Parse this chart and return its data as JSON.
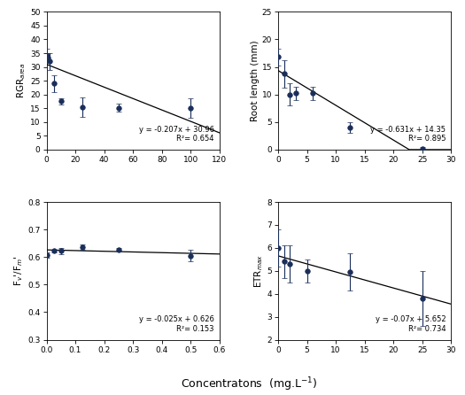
{
  "panel_tl": {
    "ylabel": "RGR$_{area}$",
    "x": [
      0,
      1,
      2,
      5,
      10,
      25,
      50,
      100
    ],
    "y": [
      34.0,
      33.5,
      32.0,
      24.0,
      17.5,
      15.5,
      15.2,
      15.0
    ],
    "yerr": [
      2.5,
      1.5,
      3.0,
      3.0,
      1.2,
      3.5,
      1.5,
      3.5
    ],
    "eq": "y = -0.207x + 30.96",
    "r2": "R²= 0.654",
    "xlim": [
      0,
      120
    ],
    "xticks": [
      0,
      20,
      40,
      60,
      80,
      100,
      120
    ],
    "ylim": [
      0,
      50
    ],
    "yticks": [
      0,
      5,
      10,
      15,
      20,
      25,
      30,
      35,
      40,
      45,
      50
    ],
    "slope": -0.207,
    "intercept": 30.96
  },
  "panel_tr": {
    "ylabel": "Root length (mm)",
    "x": [
      0,
      1,
      2,
      3,
      6,
      12.5,
      25
    ],
    "y": [
      16.8,
      13.8,
      10.0,
      10.2,
      10.2,
      4.0,
      0.2
    ],
    "yerr": [
      1.5,
      2.5,
      2.0,
      1.2,
      1.2,
      1.0,
      0.3
    ],
    "eq": "y = -0.631x + 14.35",
    "r2": "R²= 0.895",
    "xlim": [
      0,
      30
    ],
    "xticks": [
      0,
      5,
      10,
      15,
      20,
      25,
      30
    ],
    "ylim": [
      0,
      25
    ],
    "yticks": [
      0,
      5,
      10,
      15,
      20,
      25
    ],
    "slope": -0.631,
    "intercept": 14.35
  },
  "panel_bl": {
    "ylabel": "F$_{v}$'/F$_{m}$'",
    "x": [
      0,
      0.025,
      0.05,
      0.125,
      0.25,
      0.5
    ],
    "y": [
      0.608,
      0.622,
      0.622,
      0.635,
      0.627,
      0.605
    ],
    "yerr": [
      0.01,
      0.005,
      0.01,
      0.01,
      0.005,
      0.02
    ],
    "eq": "y = -0.025x + 0.626",
    "r2": "R²= 0.153",
    "xlim": [
      0,
      0.6
    ],
    "xticks": [
      0.0,
      0.1,
      0.2,
      0.3,
      0.4,
      0.5,
      0.6
    ],
    "ylim": [
      0.3,
      0.8
    ],
    "yticks": [
      0.3,
      0.4,
      0.5,
      0.6,
      0.7,
      0.8
    ],
    "slope": -0.025,
    "intercept": 0.626
  },
  "panel_br": {
    "ylabel": "ETR$_{max}$",
    "x": [
      0,
      1,
      2,
      5,
      12.5,
      25
    ],
    "y": [
      6.0,
      5.4,
      5.3,
      5.0,
      4.95,
      3.8
    ],
    "yerr": [
      0.8,
      0.7,
      0.8,
      0.5,
      0.8,
      1.2
    ],
    "eq": "y = -0.07x + 5.652",
    "r2": "R²= 0.734",
    "xlim": [
      0,
      30
    ],
    "xticks": [
      0,
      5,
      10,
      15,
      20,
      25,
      30
    ],
    "ylim": [
      2,
      8
    ],
    "yticks": [
      2,
      3,
      4,
      5,
      6,
      7,
      8
    ],
    "slope": -0.07,
    "intercept": 5.652
  },
  "xlabel": "Concentratons  (mg.L$^{-1}$)",
  "marker_color": "#1a2e5a",
  "line_color": "#000000",
  "marker_size": 4,
  "capsize": 2,
  "elinewidth": 0.8,
  "fontsize_label": 7.5,
  "fontsize_tick": 6.5,
  "fontsize_eq": 6.0,
  "fontsize_xlabel": 9
}
